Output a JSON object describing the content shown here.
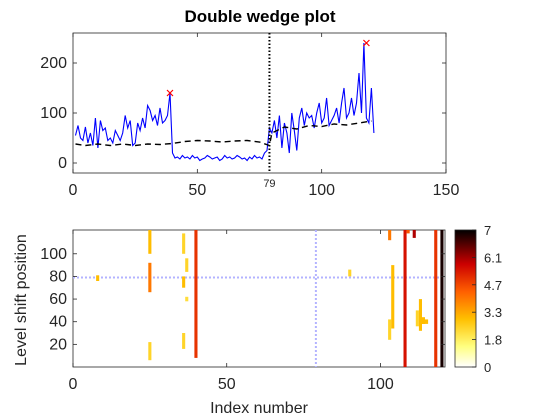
{
  "chart_data": [
    {
      "type": "line",
      "title": "Double wedge plot",
      "xlim": [
        0,
        150
      ],
      "ylim": [
        -20,
        260
      ],
      "xticks": [
        0,
        50,
        100,
        150
      ],
      "yticks": [
        0,
        100,
        200
      ],
      "grid": false,
      "vline": {
        "x": 79,
        "label": "79"
      },
      "series": [
        {
          "style": "solid",
          "color": "#0000ff",
          "x": [
            1,
            2,
            3,
            4,
            5,
            6,
            7,
            8,
            9,
            10,
            11,
            12,
            13,
            14,
            15,
            16,
            17,
            18,
            19,
            20,
            21,
            22,
            23,
            24,
            25,
            26,
            27,
            28,
            29,
            30,
            31,
            32,
            33,
            34,
            35,
            36,
            37,
            38,
            39,
            40,
            41,
            42,
            43,
            44,
            45,
            46,
            47,
            48,
            49,
            50,
            51,
            52,
            53,
            54,
            55,
            56,
            57,
            58,
            59,
            60,
            61,
            62,
            63,
            64,
            65,
            66,
            67,
            68,
            69,
            70,
            71,
            72,
            73,
            74,
            75,
            76,
            77,
            78,
            79,
            80,
            81,
            82,
            83,
            84,
            85,
            86,
            87,
            88,
            89,
            90,
            91,
            92,
            93,
            94,
            95,
            96,
            97,
            98,
            99,
            100,
            101,
            102,
            103,
            104,
            105,
            106,
            107,
            108,
            109,
            110,
            111,
            112,
            113,
            114,
            115,
            116,
            117,
            118,
            119,
            120,
            121
          ],
          "y": [
            55,
            75,
            50,
            45,
            72,
            40,
            60,
            35,
            90,
            30,
            85,
            65,
            70,
            45,
            50,
            40,
            65,
            55,
            45,
            60,
            95,
            70,
            85,
            35,
            40,
            80,
            65,
            90,
            70,
            115,
            105,
            85,
            95,
            75,
            110,
            80,
            85,
            95,
            140,
            20,
            10,
            12,
            8,
            15,
            10,
            12,
            8,
            15,
            10,
            12,
            5,
            8,
            10,
            15,
            12,
            8,
            10,
            12,
            5,
            8,
            15,
            10,
            12,
            8,
            10,
            15,
            12,
            8,
            10,
            5,
            12,
            8,
            15,
            10,
            12,
            8,
            20,
            25,
            70,
            60,
            85,
            50,
            95,
            30,
            80,
            60,
            20,
            100,
            65,
            25,
            90,
            110,
            75,
            100,
            90,
            95,
            70,
            100,
            120,
            80,
            90,
            130,
            75,
            85,
            95,
            110,
            80,
            120,
            150,
            90,
            100,
            130,
            95,
            120,
            180,
            100,
            240,
            90,
            80,
            150,
            60
          ]
        },
        {
          "style": "dashed",
          "color": "#000000",
          "x": [
            1,
            5,
            10,
            15,
            20,
            25,
            30,
            35,
            40,
            45,
            50,
            55,
            60,
            65,
            70,
            75,
            79,
            80,
            85,
            90,
            95,
            100,
            105,
            110,
            115,
            120
          ],
          "y": [
            38,
            35,
            38,
            35,
            38,
            35,
            38,
            37,
            39,
            43,
            45,
            44,
            42,
            44,
            45,
            42,
            35,
            60,
            72,
            68,
            75,
            73,
            78,
            76,
            80,
            84
          ]
        }
      ],
      "markers": {
        "symbol": "x",
        "color": "#ff0000",
        "points": [
          [
            39,
            140
          ],
          [
            118,
            240
          ]
        ]
      }
    },
    {
      "type": "heatmap",
      "xlabel": "Index number",
      "ylabel": "Level shift position",
      "xlim": [
        0,
        121
      ],
      "ylim": [
        0,
        121
      ],
      "xticks": [
        0,
        50,
        100
      ],
      "yticks": [
        20,
        40,
        60,
        80,
        100
      ],
      "colorbar": {
        "min": 0,
        "max": 7,
        "ticks": [
          "7",
          "6.1",
          "4.7",
          "3.3",
          "1.8",
          "0"
        ]
      },
      "crosshair": {
        "x": 79,
        "y": 79,
        "color": "#b3b3ff"
      },
      "cells": [
        {
          "x": 8,
          "y0": 76,
          "y1": 81,
          "v": 2.5
        },
        {
          "x": 25,
          "y0": 100,
          "y1": 121,
          "v": 2.5
        },
        {
          "x": 25,
          "y0": 66,
          "y1": 92,
          "v": 3.5
        },
        {
          "x": 25,
          "y0": 6,
          "y1": 22,
          "v": 2.0
        },
        {
          "x": 36,
          "y0": 100,
          "y1": 118,
          "v": 2.0
        },
        {
          "x": 36,
          "y0": 70,
          "y1": 80,
          "v": 2.5
        },
        {
          "x": 36,
          "y0": 16,
          "y1": 30,
          "v": 2.0
        },
        {
          "x": 37,
          "y0": 84,
          "y1": 96,
          "v": 2.0
        },
        {
          "x": 37,
          "y0": 58,
          "y1": 62,
          "v": 1.8
        },
        {
          "x": 40,
          "y0": 8,
          "y1": 121,
          "v": 4.5
        },
        {
          "x": 90,
          "y0": 80,
          "y1": 86,
          "v": 2.0
        },
        {
          "x": 103,
          "y0": 112,
          "y1": 121,
          "v": 3.5
        },
        {
          "x": 103,
          "y0": 24,
          "y1": 42,
          "v": 2.0
        },
        {
          "x": 104,
          "y0": 34,
          "y1": 90,
          "v": 2.5
        },
        {
          "x": 108,
          "y0": 0,
          "y1": 121,
          "v": 5.0
        },
        {
          "x": 109,
          "y0": 118,
          "y1": 121,
          "v": 4.0
        },
        {
          "x": 111,
          "y0": 114,
          "y1": 121,
          "v": 5.5
        },
        {
          "x": 112,
          "y0": 36,
          "y1": 50,
          "v": 2.0
        },
        {
          "x": 113,
          "y0": 32,
          "y1": 60,
          "v": 2.5
        },
        {
          "x": 114,
          "y0": 38,
          "y1": 44,
          "v": 2.5
        },
        {
          "x": 115,
          "y0": 38,
          "y1": 42,
          "v": 2.5
        },
        {
          "x": 118,
          "y0": 0,
          "y1": 121,
          "v": 4.5
        },
        {
          "x": 120,
          "y0": 0,
          "y1": 121,
          "v": 6.8
        }
      ]
    }
  ]
}
